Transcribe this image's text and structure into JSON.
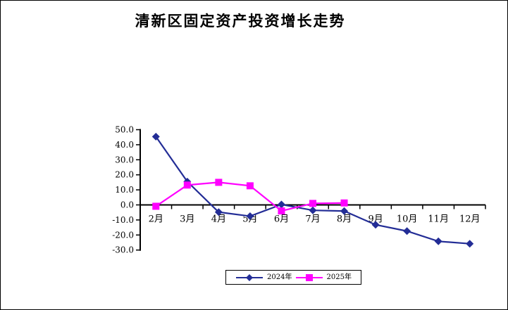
{
  "window": {
    "background": "#FFFFFF",
    "border_color": "#000000"
  },
  "chart_data": {
    "type": "line",
    "title": "清新区固定资产投资增长走势",
    "categories": [
      "2月",
      "3月",
      "4月",
      "5月",
      "6月",
      "7月",
      "8月",
      "9月",
      "10月",
      "11月",
      "12月"
    ],
    "series": [
      {
        "name": "2024年",
        "color": "#232D96",
        "marker": "diamond",
        "values": [
          45.4,
          15.5,
          -4.8,
          -7.5,
          0.3,
          -3.6,
          -4.1,
          -13.2,
          -17.4,
          -24.2,
          -25.8
        ]
      },
      {
        "name": "2025年",
        "color": "#FF00FF",
        "marker": "square",
        "values": [
          -0.9,
          13.2,
          15.0,
          12.7,
          -4.0,
          1.0,
          1.3,
          null,
          null,
          null,
          null
        ]
      }
    ],
    "xlabel": "",
    "ylabel": "",
    "ylim": [
      -30,
      50
    ],
    "ytick_step": 10,
    "ytick_format": "0.0",
    "grid": false,
    "legend_position": "bottom",
    "axis_color": "#000000",
    "plot_background": "#FFFFFF"
  }
}
